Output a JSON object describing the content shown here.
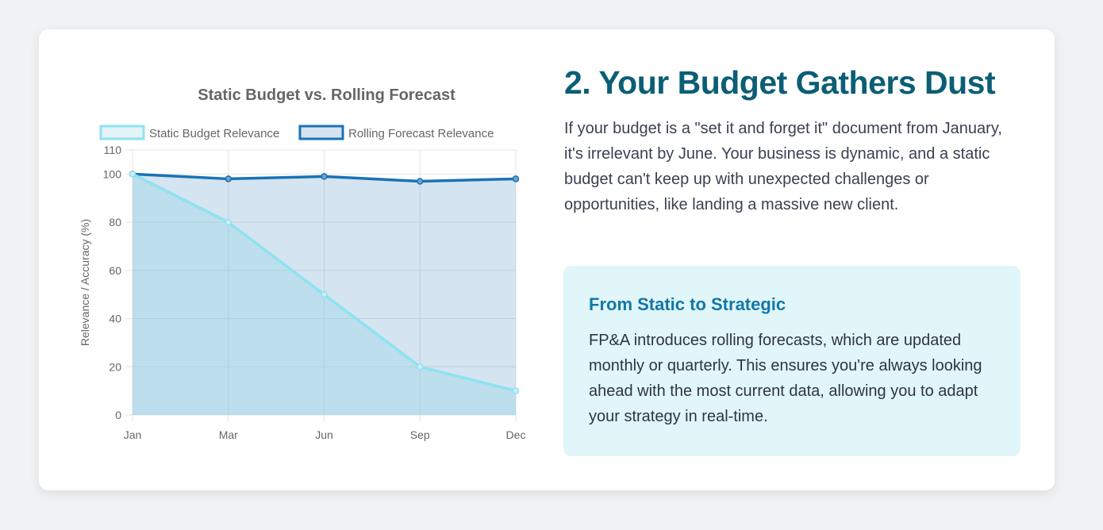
{
  "heading": "2. Your Budget Gathers Dust",
  "body": "If your budget is a \"set it and forget it\" document from January, it's irrelevant by June. Your business is dynamic, and a static budget can't keep up with unexpected challenges or opportunities, like landing a massive new client.",
  "callout": {
    "title": "From Static to Strategic",
    "text": "FP&A introduces rolling forecasts, which are updated monthly or quarterly. This ensures you're always looking ahead with the most current data, allowing you to adapt your strategy in real-time."
  },
  "chart_data": {
    "type": "line",
    "title": "Static Budget vs. Rolling Forecast",
    "categories": [
      "Jan",
      "Mar",
      "Jun",
      "Sep",
      "Dec"
    ],
    "series": [
      {
        "name": "Static Budget Relevance",
        "values": [
          100,
          80,
          50,
          20,
          10
        ],
        "color": "#8fe2f0",
        "fill": "rgba(143,211,232,0.35)"
      },
      {
        "name": "Rolling Forecast Relevance",
        "values": [
          100,
          98,
          99,
          97,
          98
        ],
        "color": "#1b72b5",
        "fill": "rgba(84,146,196,0.25)"
      }
    ],
    "xlabel": "",
    "ylabel": "Relevance / Accuracy (%)",
    "ylim": [
      0,
      110
    ],
    "yticks": [
      0,
      20,
      40,
      60,
      80,
      100,
      110
    ],
    "grid": true,
    "legend": "top"
  }
}
